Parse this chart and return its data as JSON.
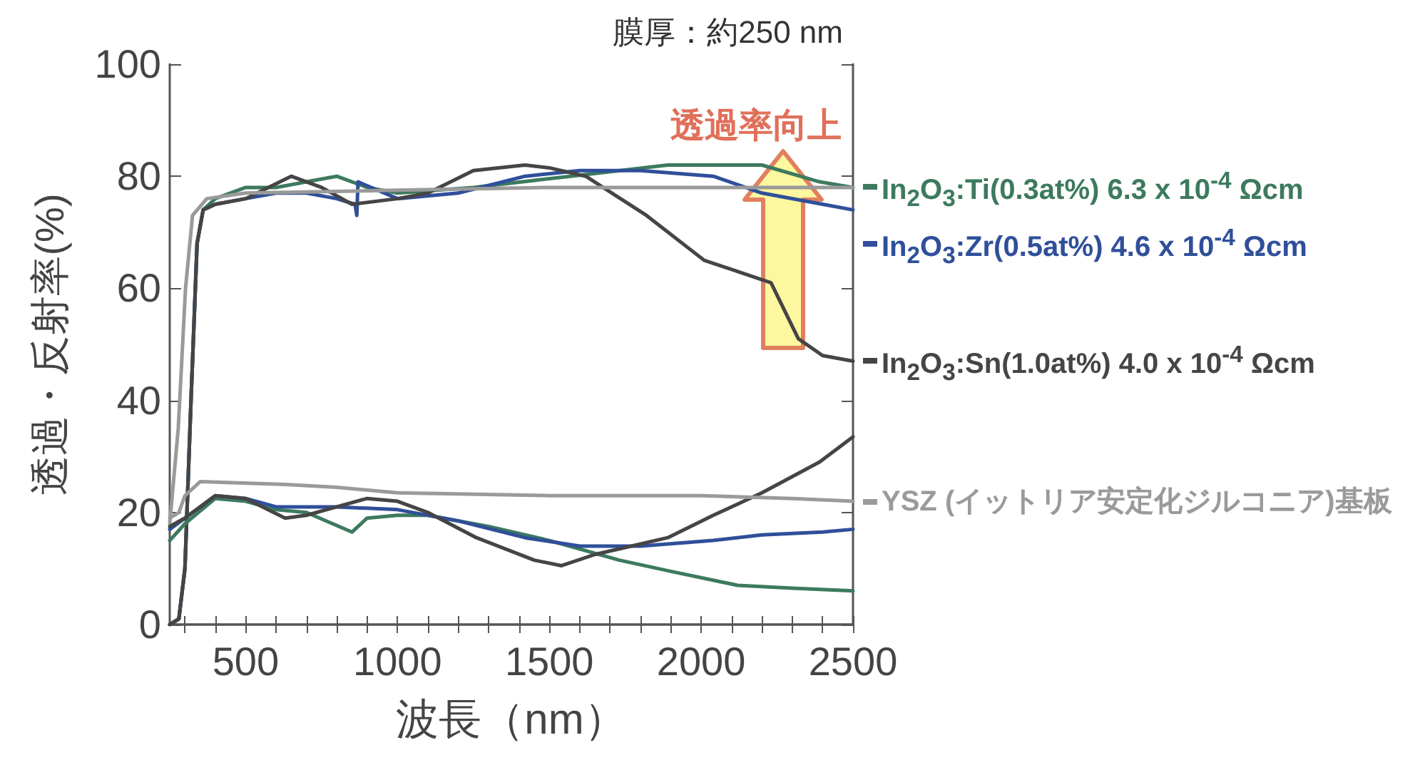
{
  "chart_data": {
    "type": "line",
    "xlabel": "波長（nm）",
    "ylabel": "透過・反射率(%)",
    "annotations": [
      "膜厚：約250 nm",
      "透過率向上"
    ],
    "xlim": [
      250,
      2500
    ],
    "ylim": [
      0,
      100
    ],
    "xticks": [
      {
        "value": 300,
        "label": null
      },
      {
        "value": 400,
        "label": null
      },
      500,
      {
        "value": 600,
        "label": null
      },
      {
        "value": 700,
        "label": null
      },
      {
        "value": 800,
        "label": null
      },
      {
        "value": 900,
        "label": null
      },
      1000,
      {
        "value": 1100,
        "label": null
      },
      {
        "value": 1200,
        "label": null
      },
      {
        "value": 1300,
        "label": null
      },
      {
        "value": 1400,
        "label": null
      },
      1500,
      {
        "value": 1600,
        "label": null
      },
      {
        "value": 1700,
        "label": null
      },
      {
        "value": 1800,
        "label": null
      },
      {
        "value": 1900,
        "label": null
      },
      2000,
      {
        "value": 2100,
        "label": null
      },
      {
        "value": 2200,
        "label": null
      },
      {
        "value": 2300,
        "label": null
      },
      {
        "value": 2400,
        "label": null
      },
      2500
    ],
    "yticks": [
      0,
      20,
      40,
      60,
      80,
      100
    ],
    "grid": false,
    "legend": "right",
    "marker": "none",
    "line_style": "solid",
    "series": [
      {
        "name": "In$_{2}$O$_{3}$:Ti(0.3at%) 6.3 x 10$^{-4}$ Ωcm",
        "color": "#3d7a5e",
        "x": [
          250,
          280,
          300,
          320,
          340,
          360,
          400,
          500,
          600,
          700,
          800,
          900,
          1000,
          1250,
          1570,
          1890,
          2200,
          2390,
          2500
        ],
        "values": [
          0,
          1,
          10,
          40,
          68,
          74,
          76,
          78,
          78,
          79,
          80,
          78,
          77,
          78,
          80,
          82,
          82,
          79,
          78
        ]
      },
      {
        "name": "In$_{2}$O$_{3}$:Zr(0.5at%) 4.6 x 10$^{-4}$ Ωcm",
        "color": "#2f4f9a",
        "x": [
          250,
          280,
          300,
          320,
          340,
          360,
          400,
          500,
          600,
          700,
          800,
          860,
          866,
          870,
          1000,
          1200,
          1420,
          1600,
          1800,
          2040,
          2200,
          2400,
          2500
        ],
        "values": [
          0,
          1,
          10,
          40,
          68,
          74,
          75,
          76,
          77,
          77,
          76,
          75,
          73,
          79,
          76,
          77,
          80,
          81,
          81,
          80,
          77,
          75,
          74
        ]
      },
      {
        "name": "In$_{2}$O$_{3}$:Sn(1.0at%) 4.0 x 10$^{-4}$ Ωcm",
        "color": "#454545",
        "x": [
          250,
          280,
          300,
          320,
          340,
          360,
          400,
          500,
          650,
          750,
          850,
          1000,
          1100,
          1250,
          1420,
          1500,
          1620,
          1820,
          2010,
          2230,
          2320,
          2400,
          2500
        ],
        "values": [
          0,
          1,
          10,
          40,
          68,
          74,
          75,
          76,
          80,
          78,
          75,
          76,
          77,
          81,
          82,
          81.5,
          80,
          73,
          65,
          61,
          51,
          48,
          47
        ]
      },
      {
        "color": "#9a9a9a",
        "x": [
          250,
          278,
          302,
          325,
          372,
          500,
          1000,
          1500,
          1800,
          2000,
          2300,
          2500
        ],
        "values": [
          18,
          35,
          60,
          73,
          76,
          77,
          77.5,
          78,
          78,
          78,
          78,
          78
        ]
      },
      {
        "color": "#3d7a5e",
        "x": [
          250,
          300,
          400,
          500,
          600,
          700,
          850,
          900,
          1000,
          1100,
          1300,
          1500,
          1730,
          1900,
          2120,
          2300,
          2500
        ],
        "values": [
          15,
          18,
          22.5,
          22,
          20.5,
          20,
          16.5,
          19,
          19.5,
          19.5,
          17.5,
          15,
          11.5,
          9.5,
          7,
          6.5,
          6
        ]
      },
      {
        "color": "#2f4f9a",
        "x": [
          250,
          300,
          400,
          500,
          600,
          800,
          1000,
          1200,
          1420,
          1600,
          1800,
          2040,
          2200,
          2400,
          2500
        ],
        "values": [
          17,
          19,
          23,
          22.5,
          21,
          21,
          20.5,
          18.5,
          15.5,
          14,
          14,
          15,
          16,
          16.5,
          17
        ]
      },
      {
        "color": "#454545",
        "x": [
          250,
          300,
          350,
          400,
          500,
          630,
          700,
          800,
          900,
          1000,
          1100,
          1260,
          1450,
          1540,
          1650,
          1890,
          2040,
          2200,
          2390,
          2500
        ],
        "values": [
          17.5,
          19,
          21,
          23,
          22.5,
          19,
          19.5,
          21,
          22.5,
          22,
          20,
          15.5,
          11.5,
          10.5,
          12.5,
          15.5,
          19.5,
          23.5,
          29,
          33.5
        ]
      },
      {
        "name": "YSZ (イットリア安定化ジルコニア)基板",
        "color": "#9a9a9a",
        "x": [
          250,
          280,
          300,
          350,
          630,
          800,
          1000,
          1500,
          2000,
          2300,
          2500
        ],
        "values": [
          19,
          20,
          23,
          25.5,
          25,
          24.5,
          23.5,
          23,
          23,
          22.5,
          22
        ]
      }
    ]
  }
}
